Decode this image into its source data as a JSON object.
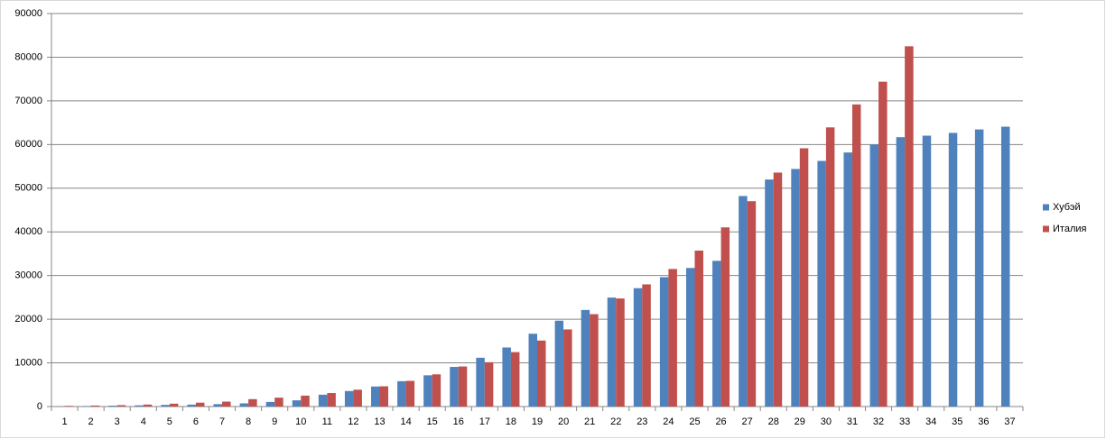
{
  "chart_data": {
    "type": "bar",
    "categories": [
      "1",
      "2",
      "3",
      "4",
      "5",
      "6",
      "7",
      "8",
      "9",
      "10",
      "11",
      "12",
      "13",
      "14",
      "15",
      "16",
      "17",
      "18",
      "19",
      "20",
      "21",
      "22",
      "23",
      "24",
      "25",
      "26",
      "27",
      "28",
      "29",
      "30",
      "31",
      "32",
      "33",
      "34",
      "35",
      "36",
      "37"
    ],
    "series": [
      {
        "name": "Хубэй",
        "color": "#4f81bd",
        "values": [
          62,
          121,
          198,
          270,
          375,
          444,
          549,
          729,
          1052,
          1423,
          2714,
          3554,
          4586,
          5806,
          7153,
          9074,
          11177,
          13522,
          16678,
          19665,
          22112,
          24953,
          27100,
          29631,
          31728,
          33366,
          48206,
          51986,
          54406,
          56249,
          58182,
          59989,
          61682,
          62031,
          62662,
          63454,
          64084
        ]
      },
      {
        "name": "Италия",
        "color": "#c0504d",
        "values": [
          155,
          229,
          322,
          453,
          655,
          888,
          1128,
          1694,
          2036,
          2502,
          3089,
          3858,
          4636,
          5883,
          7375,
          9172,
          10149,
          12462,
          15113,
          17660,
          21157,
          24747,
          27980,
          31506,
          35713,
          41035,
          47021,
          53578,
          59138,
          63927,
          69176,
          74386,
          82500,
          null,
          null,
          null,
          null
        ]
      }
    ],
    "ylim": [
      0,
      90000
    ],
    "yticks": [
      0,
      10000,
      20000,
      30000,
      40000,
      50000,
      60000,
      70000,
      80000,
      90000
    ],
    "grid": true,
    "legend": "right"
  }
}
